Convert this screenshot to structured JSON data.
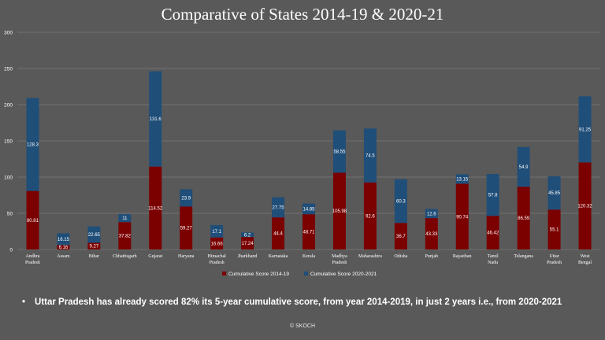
{
  "chart_data": {
    "type": "bar",
    "stacked": true,
    "title": "Comparative of States 2014-19 & 2020-21",
    "categories": [
      "Andhra Pradesh",
      "Assam",
      "Bihar",
      "Chhattisgarh",
      "Gujarat",
      "Haryana",
      "Himachal Pradesh",
      "Jharkhand",
      "Karnataka",
      "Kerala",
      "Madhya Pradesh",
      "Maharashtra",
      "Odisha",
      "Punjab",
      "Rajasthan",
      "Tamil Nadu",
      "Telangana",
      "Uttar Pradesh",
      "West Bengal"
    ],
    "series": [
      {
        "name": "Cumulative Score 2014-19",
        "color": "#7b0000",
        "values": [
          80.81,
          6.16,
          9.27,
          37.82,
          114.52,
          59.27,
          16.66,
          17.24,
          44.4,
          48.71,
          105.98,
          92.6,
          36.7,
          43.33,
          90.74,
          46.42,
          86.59,
          55.1,
          120.32
        ]
      },
      {
        "name": "Cumulative Score 2020-2021",
        "color": "#1f4e79",
        "values": [
          128.3,
          16.15,
          22.65,
          11,
          131.6,
          23.9,
          17.1,
          6.2,
          27.75,
          14.85,
          58.55,
          74.5,
          60.3,
          12.6,
          13.15,
          57.8,
          54.9,
          45.85,
          91.25
        ]
      }
    ],
    "ylim": [
      0,
      300
    ],
    "yticks": [
      0,
      50,
      100,
      150,
      200,
      250,
      300
    ],
    "grid": true,
    "legend": "bottom"
  },
  "note": {
    "bullet": "•",
    "text": "Uttar Pradesh has already scored 82% its 5-year cumulative score, from year 2014-2019,  in just 2 years i.e., from 2020-2021"
  },
  "credit": "© SKOCH"
}
